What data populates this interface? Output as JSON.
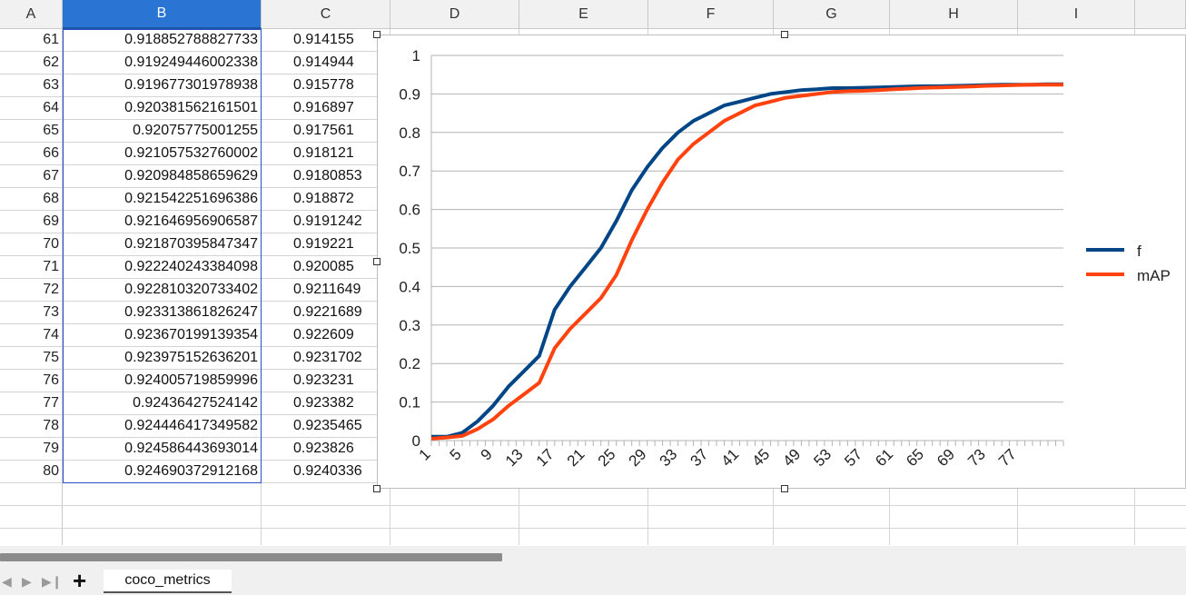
{
  "sheet": {
    "columns": [
      "A",
      "B",
      "C",
      "D",
      "E",
      "F",
      "G",
      "H",
      "I"
    ],
    "selected_column": "B",
    "rows": [
      {
        "n": "61",
        "b": "0.918852788827733",
        "c": "0.914155"
      },
      {
        "n": "62",
        "b": "0.919249446002338",
        "c": "0.914944"
      },
      {
        "n": "63",
        "b": "0.919677301978938",
        "c": "0.915778"
      },
      {
        "n": "64",
        "b": "0.920381562161501",
        "c": "0.916897"
      },
      {
        "n": "65",
        "b": "0.92075775001255",
        "c": "0.917561"
      },
      {
        "n": "66",
        "b": "0.921057532760002",
        "c": "0.918121"
      },
      {
        "n": "67",
        "b": "0.920984858659629",
        "c": "0.9180853"
      },
      {
        "n": "68",
        "b": "0.921542251696386",
        "c": "0.918872"
      },
      {
        "n": "69",
        "b": "0.921646956906587",
        "c": "0.9191242"
      },
      {
        "n": "70",
        "b": "0.921870395847347",
        "c": "0.919221"
      },
      {
        "n": "71",
        "b": "0.922240243384098",
        "c": "0.920085"
      },
      {
        "n": "72",
        "b": "0.922810320733402",
        "c": "0.9211649"
      },
      {
        "n": "73",
        "b": "0.923313861826247",
        "c": "0.9221689"
      },
      {
        "n": "74",
        "b": "0.923670199139354",
        "c": "0.922609"
      },
      {
        "n": "75",
        "b": "0.923975152636201",
        "c": "0.9231702"
      },
      {
        "n": "76",
        "b": "0.924005719859996",
        "c": "0.923231"
      },
      {
        "n": "77",
        "b": "0.92436427524142",
        "c": "0.923382"
      },
      {
        "n": "78",
        "b": "0.924446417349582",
        "c": "0.9235465"
      },
      {
        "n": "79",
        "b": "0.924586443693014",
        "c": "0.923826"
      },
      {
        "n": "80",
        "b": "0.924690372912168",
        "c": "0.9240336"
      }
    ]
  },
  "tabs": {
    "active": "coco_metrics",
    "add_icon": "plus-icon"
  },
  "chart_data": {
    "type": "line",
    "title": "",
    "xlabel": "",
    "ylabel": "",
    "ylim": [
      0,
      1
    ],
    "yticks": [
      "0",
      "0.1",
      "0.2",
      "0.3",
      "0.4",
      "0.5",
      "0.6",
      "0.7",
      "0.8",
      "0.9",
      "1"
    ],
    "xlim": [
      1,
      83
    ],
    "xtick_labels": [
      "1",
      "5",
      "9",
      "13",
      "17",
      "21",
      "25",
      "29",
      "33",
      "37",
      "41",
      "45",
      "49",
      "53",
      "57",
      "61",
      "65",
      "69",
      "73",
      "77"
    ],
    "grid": true,
    "legend_position": "right",
    "series": [
      {
        "name": "f",
        "color": "#004586",
        "x": [
          1,
          3,
          5,
          7,
          9,
          11,
          13,
          15,
          17,
          19,
          21,
          23,
          25,
          27,
          29,
          31,
          33,
          35,
          37,
          39,
          41,
          43,
          45,
          47,
          49,
          51,
          53,
          55,
          57,
          59,
          61,
          63,
          65,
          67,
          69,
          71,
          73,
          75,
          77,
          79,
          81,
          83
        ],
        "y": [
          0.01,
          0.01,
          0.02,
          0.05,
          0.09,
          0.14,
          0.18,
          0.22,
          0.34,
          0.4,
          0.45,
          0.5,
          0.57,
          0.65,
          0.71,
          0.76,
          0.8,
          0.83,
          0.85,
          0.87,
          0.88,
          0.89,
          0.9,
          0.905,
          0.91,
          0.912,
          0.915,
          0.915,
          0.916,
          0.917,
          0.918,
          0.919,
          0.92,
          0.92,
          0.921,
          0.922,
          0.923,
          0.924,
          0.924,
          0.924,
          0.925,
          0.925
        ]
      },
      {
        "name": "mAP",
        "color": "#ff420e",
        "x": [
          1,
          3,
          5,
          7,
          9,
          11,
          13,
          15,
          17,
          19,
          21,
          23,
          25,
          27,
          29,
          31,
          33,
          35,
          37,
          39,
          41,
          43,
          45,
          47,
          49,
          51,
          53,
          55,
          57,
          59,
          61,
          63,
          65,
          67,
          69,
          71,
          73,
          75,
          77,
          79,
          81,
          83
        ],
        "y": [
          0.005,
          0.008,
          0.012,
          0.03,
          0.055,
          0.09,
          0.12,
          0.15,
          0.24,
          0.29,
          0.33,
          0.37,
          0.43,
          0.52,
          0.6,
          0.67,
          0.73,
          0.77,
          0.8,
          0.83,
          0.85,
          0.87,
          0.88,
          0.89,
          0.895,
          0.9,
          0.905,
          0.907,
          0.908,
          0.91,
          0.912,
          0.914,
          0.916,
          0.917,
          0.918,
          0.919,
          0.921,
          0.922,
          0.923,
          0.924,
          0.924,
          0.924
        ]
      }
    ]
  }
}
